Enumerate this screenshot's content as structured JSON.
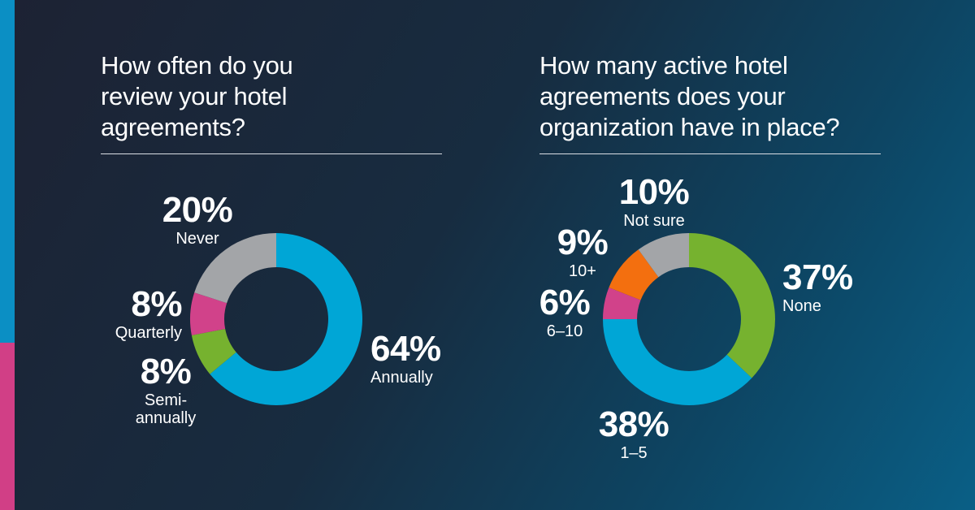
{
  "colors": {
    "accent_top": "#0b8fc4",
    "accent_bottom": "#d13f86"
  },
  "chart_data": [
    {
      "type": "pie",
      "style": "donut",
      "title": "How often do you review your hotel agreements?",
      "categories": [
        "Annually",
        "Semi-annually",
        "Quarterly",
        "Never"
      ],
      "values": [
        64,
        8,
        8,
        20
      ],
      "value_labels": [
        "64%",
        "8%",
        "8%",
        "20%"
      ],
      "display_categories": [
        "Annually",
        "Semi-\nannually",
        "Quarterly",
        "Never"
      ],
      "colors": [
        "#00a6d6",
        "#76b22f",
        "#d1428a",
        "#a3a5a8"
      ],
      "start_angle_deg": 0,
      "direction": "clockwise"
    },
    {
      "type": "pie",
      "style": "donut",
      "title": "How many active hotel agreements does your organization have in place?",
      "categories": [
        "None",
        "1–5",
        "6–10",
        "10+",
        "Not sure"
      ],
      "values": [
        37,
        38,
        6,
        9,
        10
      ],
      "value_labels": [
        "37%",
        "38%",
        "6%",
        "9%",
        "10%"
      ],
      "display_categories": [
        "None",
        "1–5",
        "6–10",
        "10+",
        "Not sure"
      ],
      "colors": [
        "#76b22f",
        "#00a6d6",
        "#d1428a",
        "#f36f0f",
        "#a3a5a8"
      ],
      "start_angle_deg": 0,
      "direction": "clockwise"
    }
  ],
  "questions": {
    "left": "How often do you\nreview your hotel\nagreements?",
    "right": "How many active hotel\nagreements does your\norganization have in place?"
  }
}
